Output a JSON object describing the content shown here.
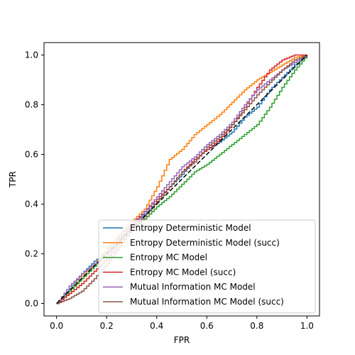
{
  "chart_data": {
    "type": "line",
    "title": "",
    "xlabel": "FPR",
    "ylabel": "TPR",
    "xlim": [
      -0.05,
      1.05
    ],
    "ylim": [
      -0.05,
      1.05
    ],
    "xticks": [
      0.0,
      0.2,
      0.4,
      0.6,
      0.8,
      1.0
    ],
    "yticks": [
      0.0,
      0.2,
      0.4,
      0.6,
      0.8,
      1.0
    ],
    "xtick_labels": [
      "0.0",
      "0.2",
      "0.4",
      "0.6",
      "0.8",
      "1.0"
    ],
    "ytick_labels": [
      "0.0",
      "0.2",
      "0.4",
      "0.6",
      "0.8",
      "1.0"
    ],
    "grid": false,
    "legend_position": "lower-right",
    "reference_line": {
      "x": [
        0,
        1
      ],
      "y": [
        0,
        1
      ],
      "color": "#000000",
      "style": "dashed"
    },
    "series": [
      {
        "name": "Entropy Deterministic Model",
        "color": "#1f77b4",
        "x": [
          0.0,
          0.05,
          0.1,
          0.15,
          0.2,
          0.25,
          0.3,
          0.35,
          0.4,
          0.45,
          0.5,
          0.55,
          0.6,
          0.65,
          0.7,
          0.75,
          0.8,
          0.85,
          0.9,
          0.95,
          1.0
        ],
        "y": [
          0.0,
          0.06,
          0.12,
          0.17,
          0.21,
          0.27,
          0.32,
          0.36,
          0.41,
          0.47,
          0.52,
          0.58,
          0.62,
          0.65,
          0.69,
          0.75,
          0.79,
          0.86,
          0.91,
          0.96,
          1.0
        ]
      },
      {
        "name": "Entropy Deterministic Model (succ)",
        "color": "#ff7f0e",
        "x": [
          0.0,
          0.05,
          0.1,
          0.15,
          0.2,
          0.25,
          0.3,
          0.35,
          0.4,
          0.45,
          0.5,
          0.55,
          0.6,
          0.65,
          0.7,
          0.75,
          0.8,
          0.85,
          0.9,
          0.95,
          1.0
        ],
        "y": [
          0.0,
          0.05,
          0.11,
          0.16,
          0.22,
          0.28,
          0.33,
          0.38,
          0.47,
          0.58,
          0.62,
          0.68,
          0.72,
          0.76,
          0.81,
          0.86,
          0.9,
          0.93,
          0.96,
          0.99,
          1.0
        ]
      },
      {
        "name": "Entropy MC Model",
        "color": "#2ca02c",
        "x": [
          0.0,
          0.05,
          0.1,
          0.15,
          0.2,
          0.25,
          0.3,
          0.35,
          0.4,
          0.45,
          0.5,
          0.55,
          0.6,
          0.65,
          0.7,
          0.75,
          0.8,
          0.85,
          0.9,
          0.95,
          1.0
        ],
        "y": [
          0.0,
          0.05,
          0.1,
          0.15,
          0.2,
          0.25,
          0.3,
          0.34,
          0.39,
          0.43,
          0.48,
          0.53,
          0.56,
          0.6,
          0.64,
          0.68,
          0.72,
          0.79,
          0.87,
          0.94,
          1.0
        ]
      },
      {
        "name": "Entropy MC Model (succ)",
        "color": "#d62728",
        "x": [
          0.0,
          0.05,
          0.1,
          0.15,
          0.2,
          0.25,
          0.3,
          0.35,
          0.4,
          0.45,
          0.5,
          0.55,
          0.6,
          0.65,
          0.7,
          0.75,
          0.8,
          0.85,
          0.9,
          0.95,
          1.0
        ],
        "y": [
          0.0,
          0.04,
          0.08,
          0.13,
          0.18,
          0.25,
          0.32,
          0.37,
          0.42,
          0.47,
          0.53,
          0.58,
          0.62,
          0.66,
          0.72,
          0.79,
          0.87,
          0.94,
          0.98,
          1.0,
          1.0
        ]
      },
      {
        "name": "Mutual Information MC Model",
        "color": "#9467bd",
        "x": [
          0.0,
          0.05,
          0.1,
          0.15,
          0.2,
          0.25,
          0.3,
          0.35,
          0.4,
          0.45,
          0.5,
          0.55,
          0.6,
          0.65,
          0.7,
          0.75,
          0.8,
          0.85,
          0.9,
          0.95,
          1.0
        ],
        "y": [
          0.0,
          0.07,
          0.12,
          0.16,
          0.2,
          0.26,
          0.31,
          0.37,
          0.43,
          0.49,
          0.55,
          0.59,
          0.64,
          0.68,
          0.73,
          0.8,
          0.86,
          0.9,
          0.94,
          0.97,
          1.0
        ]
      },
      {
        "name": "Mutual Information MC Model (succ)",
        "color": "#8c564b",
        "x": [
          0.0,
          0.05,
          0.1,
          0.15,
          0.2,
          0.25,
          0.3,
          0.35,
          0.4,
          0.45,
          0.5,
          0.55,
          0.6,
          0.65,
          0.7,
          0.75,
          0.8,
          0.85,
          0.9,
          0.95,
          1.0
        ],
        "y": [
          0.0,
          0.02,
          0.05,
          0.1,
          0.16,
          0.23,
          0.3,
          0.35,
          0.41,
          0.47,
          0.53,
          0.57,
          0.63,
          0.67,
          0.72,
          0.78,
          0.84,
          0.89,
          0.94,
          0.98,
          1.0
        ]
      }
    ]
  }
}
